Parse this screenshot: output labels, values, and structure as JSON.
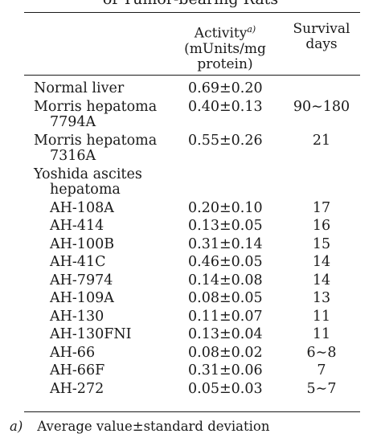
{
  "table": {
    "title_fragment": "of Tumor-bearing Rats",
    "headers": {
      "activity": [
        "Activity",
        "(mUnits/mg",
        "protein)"
      ],
      "activity_note": "a)",
      "survival": [
        "Survival",
        "days"
      ]
    },
    "rows": [
      {
        "label": "Normal liver",
        "activity": "0.69±0.20",
        "survival": ""
      },
      {
        "label": "Morris hepatoma",
        "label_cont": "7794A",
        "activity": "0.40±0.13",
        "survival": "90∼180"
      },
      {
        "label": "Morris hepatoma",
        "label_cont": "7316A",
        "activity": "0.55±0.26",
        "survival": "21"
      },
      {
        "label": "Yoshida ascites",
        "label_cont": "hepatoma",
        "activity": "",
        "survival": ""
      },
      {
        "label": "AH-108A",
        "activity": "0.20±0.10",
        "survival": "17",
        "sub": true
      },
      {
        "label": "AH-414",
        "activity": "0.13±0.05",
        "survival": "16",
        "sub": true
      },
      {
        "label": "AH-100B",
        "activity": "0.31±0.14",
        "survival": "15",
        "sub": true
      },
      {
        "label": "AH-41C",
        "activity": "0.46±0.05",
        "survival": "14",
        "sub": true
      },
      {
        "label": "AH-7974",
        "activity": "0.14±0.08",
        "survival": "14",
        "sub": true
      },
      {
        "label": "AH-109A",
        "activity": "0.08±0.05",
        "survival": "13",
        "sub": true
      },
      {
        "label": "AH-130",
        "activity": "0.11±0.07",
        "survival": "11",
        "sub": true
      },
      {
        "label": "AH-130FNI",
        "activity": "0.13±0.04",
        "survival": "11",
        "sub": true
      },
      {
        "label": "AH-66",
        "activity": "0.08±0.02",
        "survival": "6∼8",
        "sub": true
      },
      {
        "label": "AH-66F",
        "activity": "0.31±0.06",
        "survival": "7",
        "sub": true
      },
      {
        "label": "AH-272",
        "activity": "0.05±0.03",
        "survival": "5∼7",
        "sub": true
      }
    ],
    "footnote": {
      "mark": "a)",
      "text": "Average value±standard deviation"
    }
  }
}
